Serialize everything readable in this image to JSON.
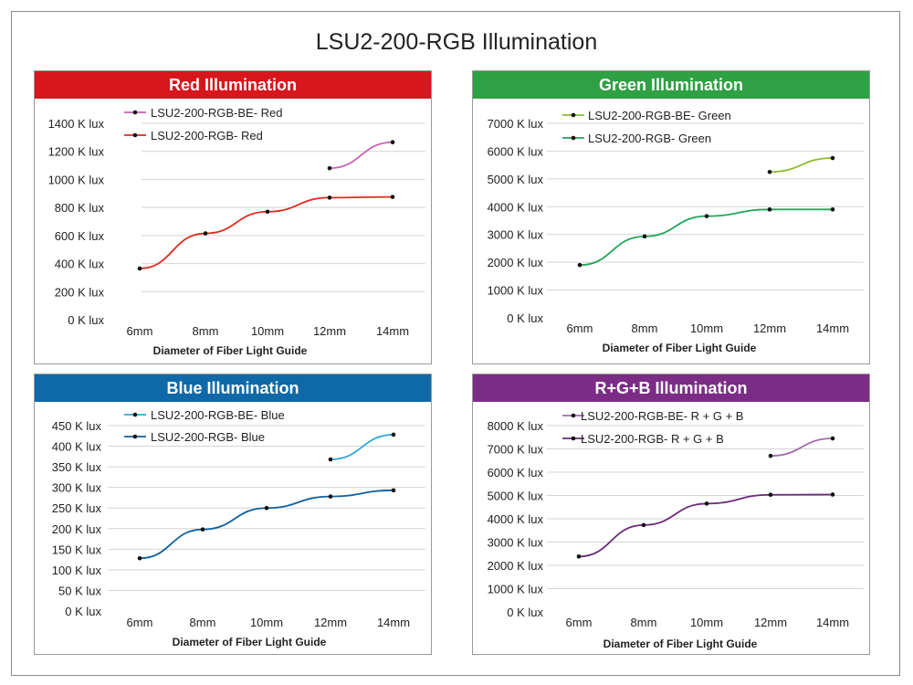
{
  "title": "LSU2-200-RGB Illumination",
  "panels": [
    {
      "title": "Red Illumination",
      "color": "#d8161d"
    },
    {
      "title": "Green Illumination",
      "color": "#2fa043"
    },
    {
      "title": "Blue Illumination",
      "color": "#0f69a8"
    },
    {
      "title": "R+G+B Illumination",
      "color": "#7b2d86"
    }
  ],
  "chart_data": [
    {
      "type": "line",
      "title": "Red Illumination",
      "xlabel": "Diameter of Fiber Light Guide",
      "ylabel": "",
      "categories": [
        "6mm",
        "8mm",
        "10mm",
        "12mm",
        "14mm"
      ],
      "yticks": [
        "0 K lux",
        "200 K lux",
        "400 K lux",
        "600 K lux",
        "800 K lux",
        "1000 K lux",
        "1200 K lux",
        "1400 K lux"
      ],
      "ylim": [
        0,
        1400
      ],
      "grid": true,
      "legend": "top-left",
      "series": [
        {
          "name": "LSU2-200-RGB-BE- Red",
          "color": "#c962b4",
          "values": [
            null,
            null,
            null,
            1080,
            1265
          ]
        },
        {
          "name": "LSU2-200-RGB- Red",
          "color": "#e02a1e",
          "values": [
            365,
            615,
            770,
            870,
            875
          ]
        }
      ]
    },
    {
      "type": "line",
      "title": "Green Illumination",
      "xlabel": "Diameter of Fiber Light Guide",
      "ylabel": "",
      "categories": [
        "6mm",
        "8mm",
        "10mm",
        "12mm",
        "14mm"
      ],
      "yticks": [
        "0 K lux",
        "1000 K lux",
        "2000 K lux",
        "3000 K lux",
        "4000 K lux",
        "5000 K lux",
        "6000 K lux",
        "7000 K lux"
      ],
      "ylim": [
        0,
        7000
      ],
      "grid": true,
      "legend": "top-left",
      "series": [
        {
          "name": "LSU2-200-RGB-BE- Green",
          "color": "#8cbd2e",
          "values": [
            null,
            null,
            null,
            5250,
            5750
          ]
        },
        {
          "name": "LSU2-200-RGB- Green",
          "color": "#22a55a",
          "values": [
            1900,
            2930,
            3660,
            3900,
            3900
          ]
        }
      ]
    },
    {
      "type": "line",
      "title": "Blue Illumination",
      "xlabel": "Diameter of Fiber Light Guide",
      "ylabel": "",
      "categories": [
        "6mm",
        "8mm",
        "10mm",
        "12mm",
        "14mm"
      ],
      "yticks": [
        "0 K lux",
        "50 K lux",
        "100 K lux",
        "150 K lux",
        "200 K lux",
        "250 K lux",
        "300 K lux",
        "350 K lux",
        "400 K lux",
        "450 K lux"
      ],
      "ylim": [
        0,
        450
      ],
      "grid": true,
      "legend": "top-left",
      "series": [
        {
          "name": "LSU2-200-RGB-BE- Blue",
          "color": "#2ea8dc",
          "values": [
            null,
            null,
            null,
            368,
            428
          ]
        },
        {
          "name": "LSU2-200-RGB- Blue",
          "color": "#10609e",
          "values": [
            128,
            198,
            250,
            278,
            293
          ]
        }
      ]
    },
    {
      "type": "line",
      "title": "R+G+B Illumination",
      "xlabel": "Diameter of Fiber Light Guide",
      "ylabel": "",
      "categories": [
        "6mm",
        "8mm",
        "10mm",
        "12mm",
        "14mm"
      ],
      "yticks": [
        "0 K lux",
        "1000 K lux",
        "2000 K lux",
        "3000 K lux",
        "4000 K lux",
        "5000 K lux",
        "6000 K lux",
        "7000 K lux",
        "8000 K lux"
      ],
      "ylim": [
        0,
        8000
      ],
      "grid": true,
      "legend": "top-left",
      "series": [
        {
          "name": "LSU2-200-RGB-BE- R + G + B",
          "color": "#a468ad",
          "values": [
            null,
            null,
            null,
            6700,
            7450
          ]
        },
        {
          "name": "LSU2-200-RGB- R + G + B",
          "color": "#6a2a78",
          "values": [
            2380,
            3730,
            4650,
            5030,
            5040
          ]
        }
      ]
    }
  ]
}
